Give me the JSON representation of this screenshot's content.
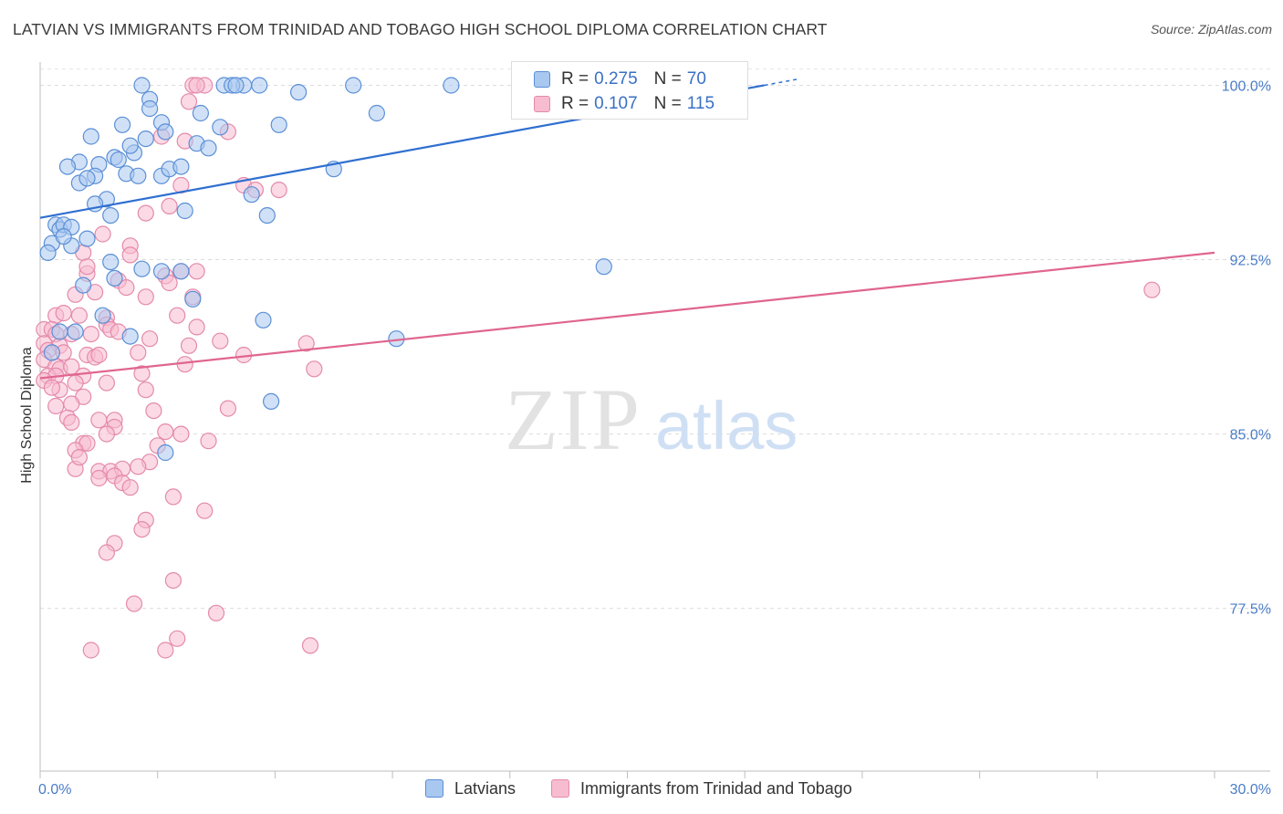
{
  "title": "LATVIAN VS IMMIGRANTS FROM TRINIDAD AND TOBAGO HIGH SCHOOL DIPLOMA CORRELATION CHART",
  "source": "Source: ZipAtlas.com",
  "watermark": {
    "zip": "ZIP",
    "atlas": "atlas"
  },
  "colors": {
    "latvian_fill": "#a9c8f0",
    "latvian_stroke": "#5b8fd6",
    "latvian_line": "#2f6fd0",
    "tt_fill": "#f7bcd0",
    "tt_stroke": "#e48aab",
    "tt_line": "#e0658f",
    "tick_label": "#4a7cc7"
  },
  "legend": {
    "latvian": {
      "r_label": "R =",
      "r_value": "0.275",
      "n_label": "N =",
      "n_value": "70"
    },
    "tt": {
      "r_label": "R =",
      "r_value": "0.107",
      "n_label": "N =",
      "n_value": "115"
    }
  },
  "bottom_legend": {
    "latvian": "Latvians",
    "tt": "Immigrants from Trinidad and Tobago"
  },
  "chart_data": {
    "type": "scatter",
    "ylabel": "High School Diploma",
    "xlabel": "",
    "xlim": [
      0,
      30
    ],
    "ylim": [
      70.5,
      101.0
    ],
    "x_tick_labels": [
      {
        "value": 0,
        "label": "0.0%"
      },
      {
        "value": 30,
        "label": "30.0%"
      }
    ],
    "y_ticks": [
      {
        "value": 100.0,
        "label": "100.0%"
      },
      {
        "value": 92.5,
        "label": "92.5%"
      },
      {
        "value": 85.0,
        "label": "85.0%"
      },
      {
        "value": 77.5,
        "label": "77.5%"
      }
    ],
    "series": [
      {
        "name": "Latvians",
        "R": 0.275,
        "N": 70,
        "trend": {
          "x": [
            0,
            18.5
          ],
          "y": [
            94.3,
            100.0
          ]
        },
        "points": [
          [
            2.6,
            100
          ],
          [
            5.2,
            100
          ],
          [
            4.7,
            100
          ],
          [
            4.9,
            100
          ],
          [
            5.0,
            100
          ],
          [
            5.6,
            100
          ],
          [
            8.0,
            100
          ],
          [
            10.5,
            100
          ],
          [
            2.8,
            99.4
          ],
          [
            6.6,
            99.7
          ],
          [
            8.6,
            98.8
          ],
          [
            4.1,
            98.8
          ],
          [
            2.1,
            98.3
          ],
          [
            3.1,
            98.4
          ],
          [
            4.6,
            98.2
          ],
          [
            6.1,
            98.3
          ],
          [
            1.3,
            97.8
          ],
          [
            2.7,
            97.7
          ],
          [
            3.2,
            98.0
          ],
          [
            4.0,
            97.5
          ],
          [
            4.3,
            97.3
          ],
          [
            2.4,
            97.1
          ],
          [
            1.9,
            96.9
          ],
          [
            1.0,
            96.7
          ],
          [
            0.7,
            96.5
          ],
          [
            1.5,
            96.6
          ],
          [
            2.0,
            96.8
          ],
          [
            1.4,
            96.1
          ],
          [
            2.2,
            96.2
          ],
          [
            2.5,
            96.1
          ],
          [
            3.1,
            96.1
          ],
          [
            3.3,
            96.4
          ],
          [
            7.5,
            96.4
          ],
          [
            1.0,
            95.8
          ],
          [
            1.7,
            95.1
          ],
          [
            1.4,
            94.9
          ],
          [
            5.4,
            95.3
          ],
          [
            3.7,
            94.6
          ],
          [
            5.8,
            94.4
          ],
          [
            1.8,
            94.4
          ],
          [
            0.4,
            94.0
          ],
          [
            0.5,
            93.8
          ],
          [
            0.6,
            94.0
          ],
          [
            0.8,
            93.9
          ],
          [
            1.2,
            93.4
          ],
          [
            0.3,
            93.2
          ],
          [
            0.8,
            93.1
          ],
          [
            0.2,
            92.8
          ],
          [
            1.8,
            92.4
          ],
          [
            2.6,
            92.1
          ],
          [
            3.1,
            92.0
          ],
          [
            3.6,
            92.0
          ],
          [
            14.4,
            92.2
          ],
          [
            1.9,
            91.7
          ],
          [
            1.1,
            91.4
          ],
          [
            3.9,
            90.8
          ],
          [
            1.6,
            90.1
          ],
          [
            5.7,
            89.9
          ],
          [
            2.3,
            89.2
          ],
          [
            9.1,
            89.1
          ],
          [
            5.9,
            86.4
          ],
          [
            3.2,
            84.2
          ],
          [
            0.3,
            88.5
          ],
          [
            0.9,
            89.4
          ],
          [
            2.8,
            99.0
          ],
          [
            1.2,
            96.0
          ],
          [
            2.3,
            97.4
          ],
          [
            0.6,
            93.5
          ],
          [
            3.6,
            96.5
          ],
          [
            0.5,
            89.4
          ]
        ]
      },
      {
        "name": "Immigrants from Trinidad and Tobago",
        "R": 0.107,
        "N": 115,
        "trend": {
          "x": [
            0,
            30
          ],
          "y": [
            87.4,
            92.8
          ]
        },
        "points": [
          [
            3.9,
            100
          ],
          [
            4.2,
            100
          ],
          [
            4.0,
            100
          ],
          [
            3.8,
            99.3
          ],
          [
            4.8,
            98.0
          ],
          [
            3.1,
            97.8
          ],
          [
            3.7,
            97.6
          ],
          [
            3.6,
            95.7
          ],
          [
            5.2,
            95.7
          ],
          [
            5.5,
            95.5
          ],
          [
            6.1,
            95.5
          ],
          [
            3.3,
            94.8
          ],
          [
            2.7,
            94.5
          ],
          [
            1.6,
            93.6
          ],
          [
            2.3,
            93.1
          ],
          [
            2.3,
            92.7
          ],
          [
            1.1,
            92.8
          ],
          [
            4.0,
            92.0
          ],
          [
            3.6,
            92.0
          ],
          [
            3.2,
            91.8
          ],
          [
            3.3,
            91.5
          ],
          [
            1.2,
            91.9
          ],
          [
            2.0,
            91.6
          ],
          [
            2.2,
            91.3
          ],
          [
            1.4,
            91.1
          ],
          [
            2.7,
            90.9
          ],
          [
            3.9,
            90.9
          ],
          [
            0.4,
            90.1
          ],
          [
            1.0,
            90.1
          ],
          [
            1.7,
            90.0
          ],
          [
            3.5,
            90.1
          ],
          [
            1.7,
            89.7
          ],
          [
            1.8,
            89.5
          ],
          [
            4.0,
            89.6
          ],
          [
            0.1,
            89.5
          ],
          [
            0.3,
            89.5
          ],
          [
            0.4,
            89.3
          ],
          [
            0.8,
            89.3
          ],
          [
            1.3,
            89.3
          ],
          [
            2.8,
            89.1
          ],
          [
            4.6,
            89.0
          ],
          [
            6.8,
            88.9
          ],
          [
            0.1,
            88.9
          ],
          [
            0.5,
            88.8
          ],
          [
            3.8,
            88.8
          ],
          [
            0.2,
            88.6
          ],
          [
            0.6,
            88.5
          ],
          [
            1.2,
            88.4
          ],
          [
            1.4,
            88.3
          ],
          [
            5.2,
            88.4
          ],
          [
            0.1,
            88.2
          ],
          [
            0.4,
            87.9
          ],
          [
            0.5,
            87.8
          ],
          [
            0.8,
            87.9
          ],
          [
            3.7,
            88.0
          ],
          [
            7.0,
            87.8
          ],
          [
            2.6,
            87.6
          ],
          [
            0.2,
            87.5
          ],
          [
            0.4,
            87.5
          ],
          [
            1.1,
            87.5
          ],
          [
            0.9,
            87.2
          ],
          [
            1.7,
            87.2
          ],
          [
            0.1,
            87.3
          ],
          [
            0.5,
            86.9
          ],
          [
            2.7,
            86.9
          ],
          [
            1.1,
            86.6
          ],
          [
            0.8,
            86.3
          ],
          [
            4.8,
            86.1
          ],
          [
            2.9,
            86.0
          ],
          [
            0.7,
            85.7
          ],
          [
            1.5,
            85.6
          ],
          [
            1.9,
            85.6
          ],
          [
            0.8,
            85.5
          ],
          [
            1.9,
            85.3
          ],
          [
            1.7,
            85.0
          ],
          [
            3.2,
            85.1
          ],
          [
            3.6,
            85.0
          ],
          [
            4.3,
            84.7
          ],
          [
            1.1,
            84.6
          ],
          [
            1.2,
            84.6
          ],
          [
            0.9,
            84.3
          ],
          [
            2.8,
            83.8
          ],
          [
            2.5,
            83.6
          ],
          [
            1.5,
            83.4
          ],
          [
            1.8,
            83.4
          ],
          [
            0.9,
            83.5
          ],
          [
            2.1,
            83.5
          ],
          [
            1.9,
            83.2
          ],
          [
            1.5,
            83.1
          ],
          [
            2.1,
            82.9
          ],
          [
            3.4,
            82.3
          ],
          [
            4.2,
            81.7
          ],
          [
            2.7,
            81.3
          ],
          [
            2.6,
            80.9
          ],
          [
            1.9,
            80.3
          ],
          [
            1.7,
            79.9
          ],
          [
            3.4,
            78.7
          ],
          [
            2.4,
            77.7
          ],
          [
            4.5,
            77.3
          ],
          [
            3.5,
            76.2
          ],
          [
            6.9,
            75.9
          ],
          [
            1.3,
            75.7
          ],
          [
            3.2,
            75.7
          ],
          [
            28.4,
            91.2
          ],
          [
            2.0,
            89.4
          ],
          [
            1.5,
            88.4
          ],
          [
            0.3,
            87.0
          ],
          [
            1.0,
            84.0
          ],
          [
            2.3,
            82.7
          ],
          [
            0.6,
            90.2
          ],
          [
            1.2,
            92.2
          ],
          [
            2.5,
            88.5
          ],
          [
            0.9,
            91.0
          ],
          [
            3.0,
            84.5
          ],
          [
            0.4,
            86.2
          ]
        ]
      }
    ]
  }
}
